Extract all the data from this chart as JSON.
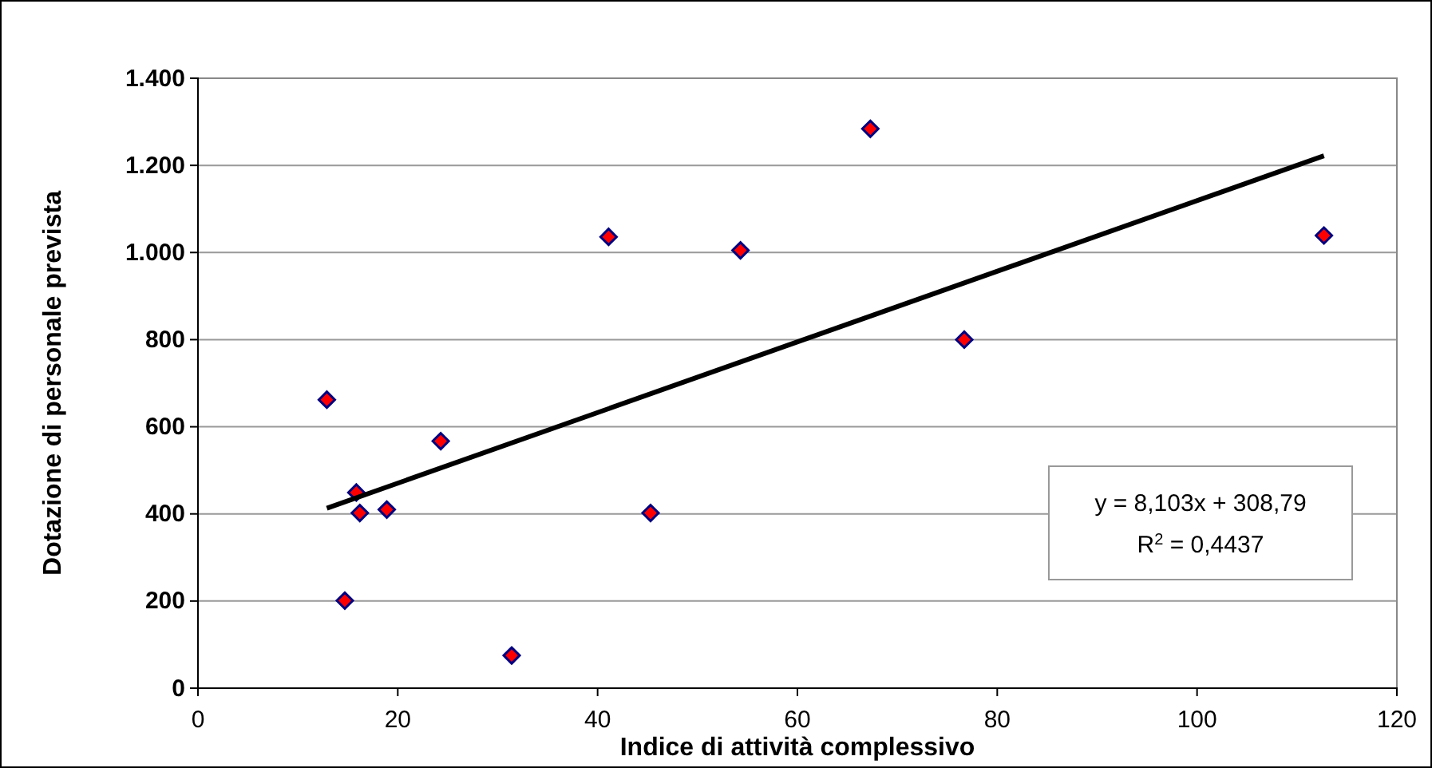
{
  "chart_data": {
    "type": "scatter",
    "xlabel": "Indice di attività complessivo",
    "ylabel": "Dotazione di personale prevista",
    "xlim": [
      0,
      120
    ],
    "xticks": [
      0,
      20,
      40,
      60,
      80,
      100,
      120
    ],
    "ylim": [
      0,
      1400
    ],
    "yticks": [
      0,
      200,
      400,
      600,
      800,
      {
        "value": 1000,
        "label": "1.000"
      },
      {
        "value": 1200,
        "label": "1.200"
      },
      {
        "value": 1400,
        "label": "1.400"
      }
    ],
    "grid": "y",
    "series": [
      {
        "marker": "diamond",
        "color": "#ff0000",
        "x": [
          12.9,
          15.85,
          16.2,
          18.9,
          14.7,
          24.3,
          31.4,
          41.1,
          45.3,
          54.3,
          67.3,
          76.7,
          112.7
        ],
        "values": [
          662,
          449,
          402,
          410,
          201,
          567,
          75,
          1036,
          402,
          1005,
          1284,
          800,
          1039
        ]
      },
      {
        "type": "line",
        "marker": "none",
        "color": "#000000",
        "x": [
          12.9,
          112.7
        ],
        "values": [
          413,
          1222
        ]
      }
    ],
    "annotations": [
      "y = 8,103x + 308,79",
      "R$^{2}$ = 0,4437"
    ]
  }
}
